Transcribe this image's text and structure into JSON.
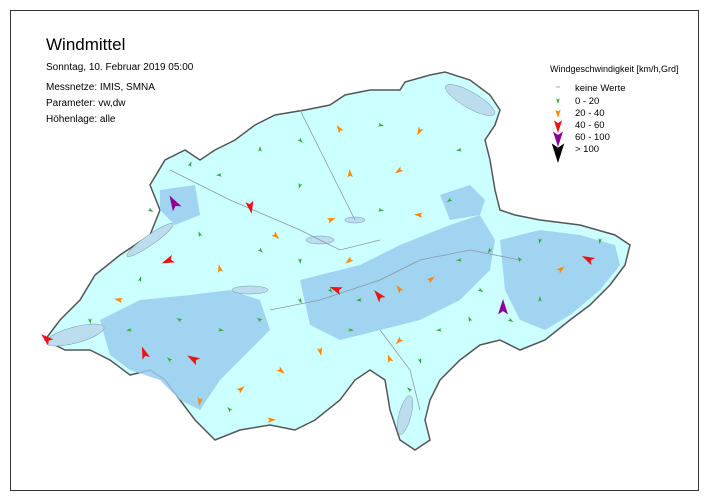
{
  "header": {
    "title": "Windmittel",
    "date": "Sonntag, 10. Februar 2019 05:00",
    "networks": "Messnetze: IMIS, SMNA",
    "parameter": "Parameter: vw,dw",
    "altitude": "Höhenlage: alle"
  },
  "legend": {
    "title": "Windgeschwindigkeit [km/h,Grd]",
    "items": [
      {
        "label": "keine Werte",
        "color": "#aaaaaa",
        "icon": "dash"
      },
      {
        "label": "0 - 20",
        "color": "#33aa33",
        "icon": "arrow-small"
      },
      {
        "label": "20 - 40",
        "color": "#ff8800",
        "icon": "arrow-medium"
      },
      {
        "label": "40 - 60",
        "color": "#ee1111",
        "icon": "arrow-large"
      },
      {
        "label": "60 - 100",
        "color": "#880099",
        "icon": "arrow-xlarge"
      },
      {
        "label": "> 100",
        "color": "#000000",
        "icon": "arrow-xxlarge"
      }
    ]
  },
  "map": {
    "land_color": "#ccffff",
    "high_color": "#99ccee",
    "lake_color": "#bbddee",
    "border_color": "#555555"
  }
}
